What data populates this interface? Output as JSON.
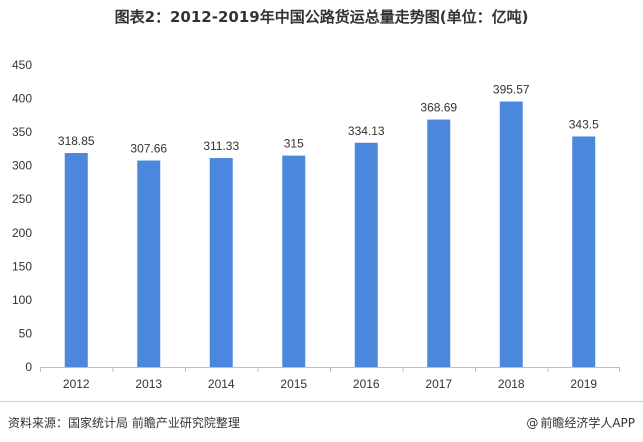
{
  "title": "图表2：2012-2019年中国公路货运总量走势图(单位：亿吨)",
  "source_text": "资料来源：国家统计局 前瞻产业研究院整理",
  "brand_text": "前瞻经济学人APP",
  "colors": {
    "bar": "#4a87dd",
    "axis": "#bfbfbf",
    "text": "#333333"
  },
  "chart_data": {
    "type": "bar",
    "title": "图表2：2012-2019年中国公路货运总量走势图(单位：亿吨)",
    "xlabel": "",
    "ylabel": "",
    "categories": [
      "2012",
      "2013",
      "2014",
      "2015",
      "2016",
      "2017",
      "2018",
      "2019"
    ],
    "series": [
      {
        "values": [
          318.85,
          307.66,
          311.33,
          315,
          334.13,
          368.69,
          395.57,
          343.5
        ]
      }
    ],
    "data_labels": [
      "318.85",
      "307.66",
      "311.33",
      "315",
      "334.13",
      "368.69",
      "395.57",
      "343.5"
    ],
    "yticks": [
      0,
      50,
      100,
      150,
      200,
      250,
      300,
      350,
      400,
      450
    ],
    "ylim": [
      0,
      450
    ],
    "grid": false,
    "legend": "none"
  }
}
